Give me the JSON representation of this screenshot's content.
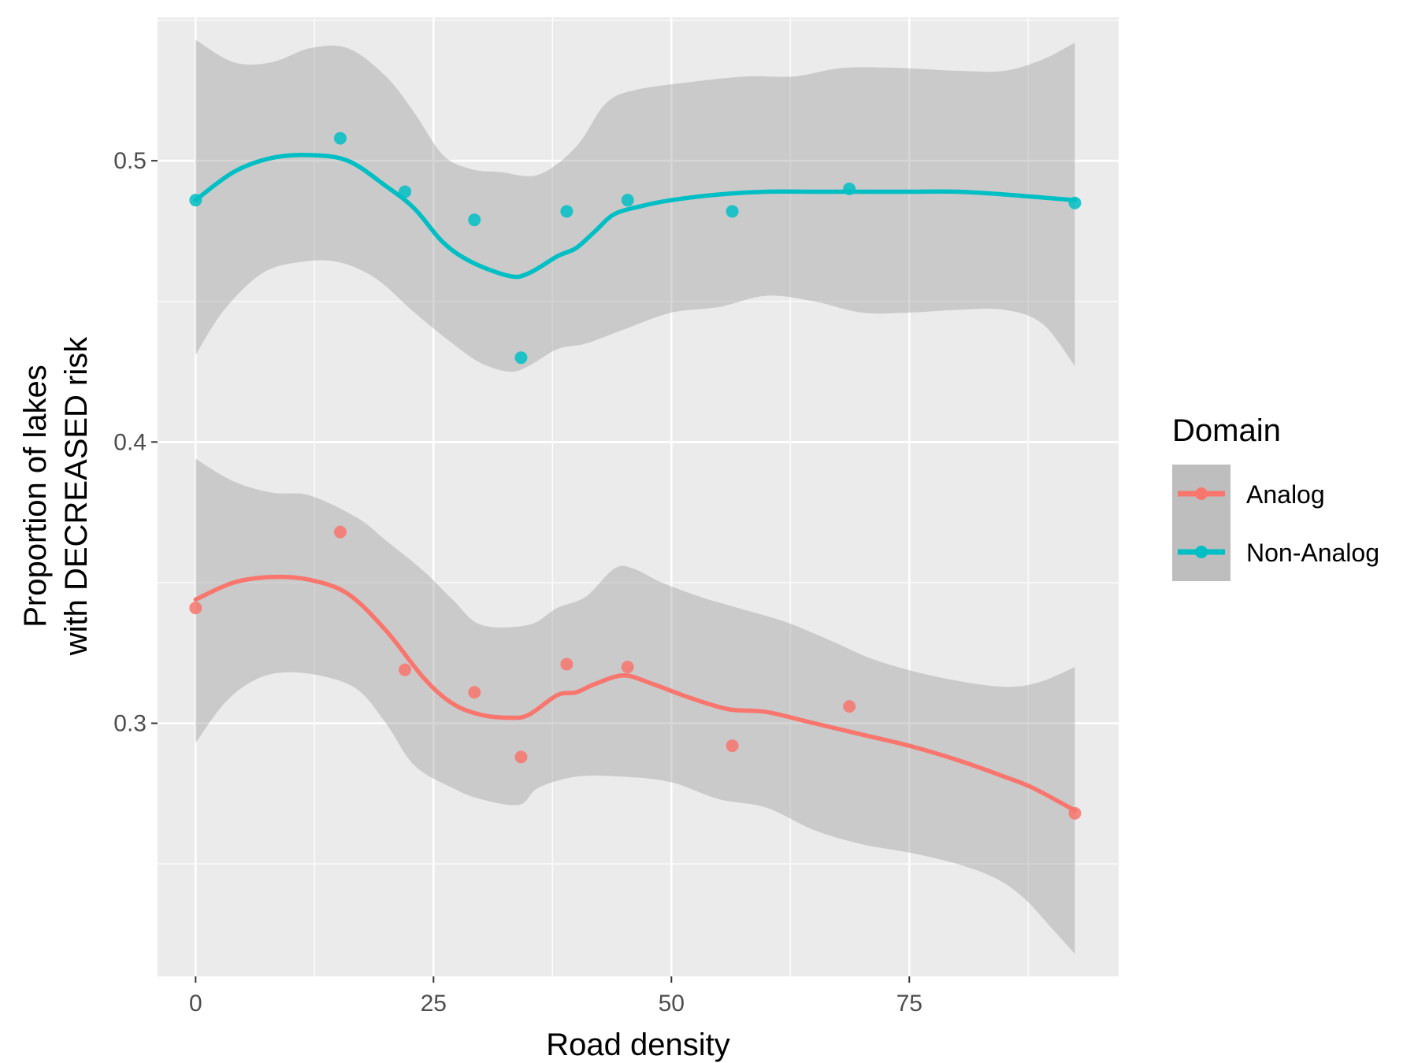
{
  "chart_data": {
    "type": "line",
    "title": "",
    "xlabel": "Road density",
    "ylabel_lines": [
      "Proportion of lakes",
      "with DECREASED risk"
    ],
    "xlim": [
      -4,
      97
    ],
    "ylim": [
      0.21,
      0.551
    ],
    "x_ticks": [
      0,
      25,
      50,
      75
    ],
    "x_tick_labels": [
      "0",
      "25",
      "50",
      "75"
    ],
    "y_ticks": [
      0.3,
      0.4,
      0.5
    ],
    "y_tick_labels": [
      "0.3",
      "0.4",
      "0.5"
    ],
    "grid": true,
    "legend": {
      "title": "Domain",
      "position": "right"
    },
    "series": [
      {
        "name": "Analog",
        "color": "#F8766D",
        "points": [
          {
            "x": 0,
            "y": 0.341
          },
          {
            "x": 15.2,
            "y": 0.368
          },
          {
            "x": 22,
            "y": 0.319
          },
          {
            "x": 29.3,
            "y": 0.311
          },
          {
            "x": 34.2,
            "y": 0.288
          },
          {
            "x": 39,
            "y": 0.321
          },
          {
            "x": 45.4,
            "y": 0.32
          },
          {
            "x": 56.4,
            "y": 0.292
          },
          {
            "x": 68.7,
            "y": 0.306
          },
          {
            "x": 92.4,
            "y": 0.268
          }
        ],
        "smooth": [
          {
            "x": 0,
            "y": 0.344
          },
          {
            "x": 4,
            "y": 0.35
          },
          {
            "x": 8,
            "y": 0.352
          },
          {
            "x": 12,
            "y": 0.351
          },
          {
            "x": 16,
            "y": 0.346
          },
          {
            "x": 20,
            "y": 0.333
          },
          {
            "x": 24,
            "y": 0.316
          },
          {
            "x": 27,
            "y": 0.307
          },
          {
            "x": 30,
            "y": 0.303
          },
          {
            "x": 33,
            "y": 0.302
          },
          {
            "x": 35,
            "y": 0.303
          },
          {
            "x": 38,
            "y": 0.31
          },
          {
            "x": 40,
            "y": 0.311
          },
          {
            "x": 42,
            "y": 0.314
          },
          {
            "x": 45,
            "y": 0.317
          },
          {
            "x": 48,
            "y": 0.314
          },
          {
            "x": 52,
            "y": 0.309
          },
          {
            "x": 56,
            "y": 0.305
          },
          {
            "x": 60,
            "y": 0.304
          },
          {
            "x": 65,
            "y": 0.3
          },
          {
            "x": 70,
            "y": 0.296
          },
          {
            "x": 75,
            "y": 0.292
          },
          {
            "x": 80,
            "y": 0.287
          },
          {
            "x": 85,
            "y": 0.281
          },
          {
            "x": 88,
            "y": 0.277
          },
          {
            "x": 92.4,
            "y": 0.269
          }
        ],
        "band_upper": [
          {
            "x": 0,
            "y": 0.394
          },
          {
            "x": 4,
            "y": 0.386
          },
          {
            "x": 8,
            "y": 0.382
          },
          {
            "x": 12,
            "y": 0.381
          },
          {
            "x": 17,
            "y": 0.373
          },
          {
            "x": 20,
            "y": 0.365
          },
          {
            "x": 24,
            "y": 0.354
          },
          {
            "x": 27,
            "y": 0.344
          },
          {
            "x": 30,
            "y": 0.335
          },
          {
            "x": 35,
            "y": 0.335
          },
          {
            "x": 38,
            "y": 0.341
          },
          {
            "x": 41,
            "y": 0.345
          },
          {
            "x": 44,
            "y": 0.355
          },
          {
            "x": 46,
            "y": 0.355
          },
          {
            "x": 49,
            "y": 0.35
          },
          {
            "x": 53,
            "y": 0.345
          },
          {
            "x": 57,
            "y": 0.341
          },
          {
            "x": 62,
            "y": 0.336
          },
          {
            "x": 67,
            "y": 0.329
          },
          {
            "x": 71,
            "y": 0.323
          },
          {
            "x": 76,
            "y": 0.318
          },
          {
            "x": 82,
            "y": 0.314
          },
          {
            "x": 86,
            "y": 0.313
          },
          {
            "x": 89,
            "y": 0.315
          },
          {
            "x": 92.4,
            "y": 0.32
          }
        ],
        "band_lower": [
          {
            "x": 0,
            "y": 0.293
          },
          {
            "x": 3,
            "y": 0.307
          },
          {
            "x": 6,
            "y": 0.315
          },
          {
            "x": 9,
            "y": 0.318
          },
          {
            "x": 13,
            "y": 0.317
          },
          {
            "x": 17,
            "y": 0.312
          },
          {
            "x": 20,
            "y": 0.3
          },
          {
            "x": 23,
            "y": 0.285
          },
          {
            "x": 27,
            "y": 0.277
          },
          {
            "x": 30,
            "y": 0.273
          },
          {
            "x": 34,
            "y": 0.271
          },
          {
            "x": 36,
            "y": 0.277
          },
          {
            "x": 40,
            "y": 0.281
          },
          {
            "x": 45,
            "y": 0.281
          },
          {
            "x": 50,
            "y": 0.279
          },
          {
            "x": 55,
            "y": 0.273
          },
          {
            "x": 60,
            "y": 0.27
          },
          {
            "x": 65,
            "y": 0.262
          },
          {
            "x": 70,
            "y": 0.257
          },
          {
            "x": 75,
            "y": 0.254
          },
          {
            "x": 80,
            "y": 0.25
          },
          {
            "x": 84,
            "y": 0.245
          },
          {
            "x": 87,
            "y": 0.238
          },
          {
            "x": 90,
            "y": 0.227
          },
          {
            "x": 92.4,
            "y": 0.218
          }
        ]
      },
      {
        "name": "Non-Analog",
        "color": "#00BFC4",
        "points": [
          {
            "x": 0,
            "y": 0.486
          },
          {
            "x": 15.2,
            "y": 0.508
          },
          {
            "x": 22,
            "y": 0.489
          },
          {
            "x": 29.3,
            "y": 0.479
          },
          {
            "x": 34.2,
            "y": 0.43
          },
          {
            "x": 39,
            "y": 0.482
          },
          {
            "x": 45.4,
            "y": 0.486
          },
          {
            "x": 56.4,
            "y": 0.482
          },
          {
            "x": 68.7,
            "y": 0.49
          },
          {
            "x": 92.4,
            "y": 0.485
          }
        ],
        "smooth": [
          {
            "x": 0,
            "y": 0.486
          },
          {
            "x": 4,
            "y": 0.496
          },
          {
            "x": 8,
            "y": 0.501
          },
          {
            "x": 12,
            "y": 0.502
          },
          {
            "x": 16,
            "y": 0.5
          },
          {
            "x": 20,
            "y": 0.491
          },
          {
            "x": 23,
            "y": 0.483
          },
          {
            "x": 26,
            "y": 0.471
          },
          {
            "x": 29,
            "y": 0.464
          },
          {
            "x": 33,
            "y": 0.459
          },
          {
            "x": 35,
            "y": 0.46
          },
          {
            "x": 38,
            "y": 0.466
          },
          {
            "x": 40,
            "y": 0.469
          },
          {
            "x": 42,
            "y": 0.475
          },
          {
            "x": 44,
            "y": 0.481
          },
          {
            "x": 47,
            "y": 0.484
          },
          {
            "x": 50,
            "y": 0.486
          },
          {
            "x": 55,
            "y": 0.488
          },
          {
            "x": 60,
            "y": 0.489
          },
          {
            "x": 65,
            "y": 0.489
          },
          {
            "x": 70,
            "y": 0.489
          },
          {
            "x": 75,
            "y": 0.489
          },
          {
            "x": 80,
            "y": 0.489
          },
          {
            "x": 85,
            "y": 0.488
          },
          {
            "x": 92.4,
            "y": 0.486
          }
        ],
        "band_upper": [
          {
            "x": 0,
            "y": 0.543
          },
          {
            "x": 4,
            "y": 0.535
          },
          {
            "x": 8,
            "y": 0.535
          },
          {
            "x": 12,
            "y": 0.54
          },
          {
            "x": 16,
            "y": 0.54
          },
          {
            "x": 20,
            "y": 0.53
          },
          {
            "x": 23,
            "y": 0.517
          },
          {
            "x": 26,
            "y": 0.502
          },
          {
            "x": 29,
            "y": 0.497
          },
          {
            "x": 32,
            "y": 0.496
          },
          {
            "x": 36,
            "y": 0.495
          },
          {
            "x": 40,
            "y": 0.505
          },
          {
            "x": 43,
            "y": 0.52
          },
          {
            "x": 46,
            "y": 0.525
          },
          {
            "x": 52,
            "y": 0.528
          },
          {
            "x": 58,
            "y": 0.53
          },
          {
            "x": 63,
            "y": 0.53
          },
          {
            "x": 68,
            "y": 0.533
          },
          {
            "x": 74,
            "y": 0.533
          },
          {
            "x": 80,
            "y": 0.532
          },
          {
            "x": 85,
            "y": 0.532
          },
          {
            "x": 89,
            "y": 0.536
          },
          {
            "x": 92.4,
            "y": 0.542
          }
        ],
        "band_lower": [
          {
            "x": 0,
            "y": 0.431
          },
          {
            "x": 3,
            "y": 0.447
          },
          {
            "x": 7,
            "y": 0.46
          },
          {
            "x": 11,
            "y": 0.464
          },
          {
            "x": 15,
            "y": 0.464
          },
          {
            "x": 19,
            "y": 0.458
          },
          {
            "x": 23,
            "y": 0.446
          },
          {
            "x": 27,
            "y": 0.435
          },
          {
            "x": 30,
            "y": 0.428
          },
          {
            "x": 33,
            "y": 0.425
          },
          {
            "x": 35,
            "y": 0.427
          },
          {
            "x": 38,
            "y": 0.433
          },
          {
            "x": 41,
            "y": 0.435
          },
          {
            "x": 45,
            "y": 0.44
          },
          {
            "x": 50,
            "y": 0.446
          },
          {
            "x": 55,
            "y": 0.448
          },
          {
            "x": 60,
            "y": 0.452
          },
          {
            "x": 65,
            "y": 0.45
          },
          {
            "x": 70,
            "y": 0.446
          },
          {
            "x": 75,
            "y": 0.446
          },
          {
            "x": 80,
            "y": 0.447
          },
          {
            "x": 85,
            "y": 0.447
          },
          {
            "x": 89,
            "y": 0.442
          },
          {
            "x": 92.4,
            "y": 0.427
          }
        ]
      }
    ]
  }
}
